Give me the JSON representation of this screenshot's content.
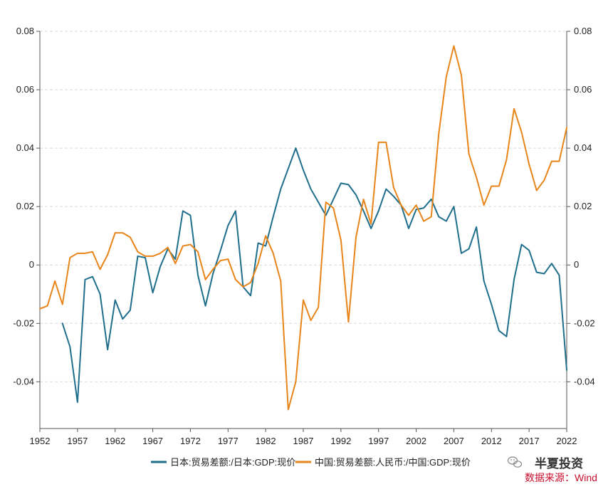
{
  "chart_data": {
    "type": "line",
    "x": [
      1952,
      1953,
      1954,
      1955,
      1956,
      1957,
      1958,
      1959,
      1960,
      1961,
      1962,
      1963,
      1964,
      1965,
      1966,
      1967,
      1968,
      1969,
      1970,
      1971,
      1972,
      1973,
      1974,
      1975,
      1976,
      1977,
      1978,
      1979,
      1980,
      1981,
      1982,
      1983,
      1984,
      1985,
      1986,
      1987,
      1988,
      1989,
      1990,
      1991,
      1992,
      1993,
      1994,
      1995,
      1996,
      1997,
      1998,
      1999,
      2000,
      2001,
      2002,
      2003,
      2004,
      2005,
      2006,
      2007,
      2008,
      2009,
      2010,
      2011,
      2012,
      2013,
      2014,
      2015,
      2016,
      2017,
      2018,
      2019,
      2020,
      2021,
      2022
    ],
    "x_ticks": [
      "1952",
      "1957",
      "1962",
      "1967",
      "1972",
      "1977",
      "1982",
      "1987",
      "1992",
      "1997",
      "2002",
      "2007",
      "2012",
      "2017",
      "2022"
    ],
    "y_ticks_left": [
      "0.08",
      "0.06",
      "0.04",
      "0.02",
      "0",
      "-0.02",
      "-0.04"
    ],
    "y_ticks_right": [
      "0.08",
      "0.06",
      "0.04",
      "0.02",
      "0",
      "-0.02",
      "-0.04"
    ],
    "ylim": [
      -0.056,
      0.08
    ],
    "grid": true,
    "legend_position": "bottom",
    "series": [
      {
        "name": "日本:贸易差额:/日本:GDP:现价",
        "color": "#1f6e8c",
        "axis": "left",
        "values": [
          null,
          null,
          null,
          -0.02,
          -0.028,
          -0.047,
          -0.005,
          -0.004,
          -0.01,
          -0.029,
          -0.012,
          -0.0185,
          -0.0155,
          0.003,
          0.0025,
          -0.0095,
          -0.0005,
          0.0055,
          0.002,
          0.0185,
          0.017,
          -0.0035,
          -0.014,
          -0.003,
          0.005,
          0.0135,
          0.0185,
          -0.0075,
          -0.0105,
          0.0075,
          0.0065,
          0.0165,
          0.026,
          0.033,
          0.04,
          0.0325,
          0.026,
          0.0215,
          0.017,
          0.0225,
          0.028,
          0.0275,
          0.024,
          0.0185,
          0.0125,
          0.0185,
          0.026,
          0.0235,
          0.0205,
          0.0125,
          0.019,
          0.0195,
          0.0225,
          0.0165,
          0.015,
          0.02,
          0.004,
          0.0055,
          0.013,
          -0.0055,
          -0.0135,
          -0.0225,
          -0.0245,
          -0.005,
          0.007,
          0.005,
          -0.0025,
          -0.003,
          0.0005,
          -0.0035,
          -0.036
        ]
      },
      {
        "name": "中国:贸易差额:人民币:/中国:GDP:现价",
        "color": "#e8851a",
        "axis": "right",
        "values": [
          -0.015,
          -0.014,
          -0.0055,
          -0.0135,
          0.0025,
          0.004,
          0.004,
          0.0045,
          -0.0015,
          0.0035,
          0.011,
          0.011,
          0.0095,
          0.0045,
          0.003,
          0.003,
          0.004,
          0.006,
          0.0005,
          0.0065,
          0.007,
          0.0045,
          -0.005,
          -0.0015,
          0.0015,
          0.002,
          -0.005,
          -0.0075,
          -0.006,
          0.0005,
          0.01,
          0.004,
          -0.0055,
          -0.0495,
          -0.04,
          -0.012,
          -0.019,
          -0.0145,
          0.0215,
          0.0195,
          0.0085,
          -0.0195,
          0.0095,
          0.0225,
          0.014,
          0.042,
          0.042,
          0.0265,
          0.0205,
          0.017,
          0.0205,
          0.015,
          0.0165,
          0.045,
          0.0645,
          0.075,
          0.065,
          0.038,
          0.03,
          0.0205,
          0.027,
          0.027,
          0.036,
          0.0535,
          0.0455,
          0.0345,
          0.0255,
          0.029,
          0.0355,
          0.0355,
          0.047
        ]
      }
    ]
  },
  "watermark": {
    "icon": "wechat-icon",
    "title": "半夏投资",
    "source": "数据来源：Wind"
  }
}
